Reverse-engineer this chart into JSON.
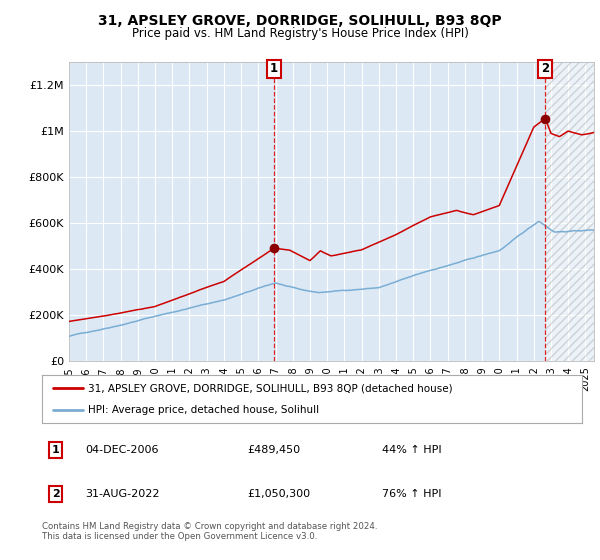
{
  "title": "31, APSLEY GROVE, DORRIDGE, SOLIHULL, B93 8QP",
  "subtitle": "Price paid vs. HM Land Registry's House Price Index (HPI)",
  "red_line_label": "31, APSLEY GROVE, DORRIDGE, SOLIHULL, B93 8QP (detached house)",
  "blue_line_label": "HPI: Average price, detached house, Solihull",
  "footer": "Contains HM Land Registry data © Crown copyright and database right 2024.\nThis data is licensed under the Open Government Licence v3.0.",
  "ylim": [
    0,
    1300000
  ],
  "yticks": [
    0,
    200000,
    400000,
    600000,
    800000,
    1000000,
    1200000
  ],
  "ytick_labels": [
    "£0",
    "£200K",
    "£400K",
    "£600K",
    "£800K",
    "£1M",
    "£1.2M"
  ],
  "plot_bg_color": "#dce9f5",
  "grid_color": "#ffffff",
  "red_color": "#cc0000",
  "blue_color": "#7aadd4",
  "vline_color": "#dd0000",
  "marker1_x": 2006.92,
  "marker1_y": 489450,
  "marker2_x": 2022.67,
  "marker2_y": 1050300,
  "xmin": 1995,
  "xmax": 2025.5,
  "xticks": [
    1995,
    1996,
    1997,
    1998,
    1999,
    2000,
    2001,
    2002,
    2003,
    2004,
    2005,
    2006,
    2007,
    2008,
    2009,
    2010,
    2011,
    2012,
    2013,
    2014,
    2015,
    2016,
    2017,
    2018,
    2019,
    2020,
    2021,
    2022,
    2023,
    2024,
    2025
  ],
  "ann1_date": "04-DEC-2006",
  "ann1_price": "£489,450",
  "ann1_pct": "44% ↑ HPI",
  "ann2_date": "31-AUG-2022",
  "ann2_price": "£1,050,300",
  "ann2_pct": "76% ↑ HPI"
}
